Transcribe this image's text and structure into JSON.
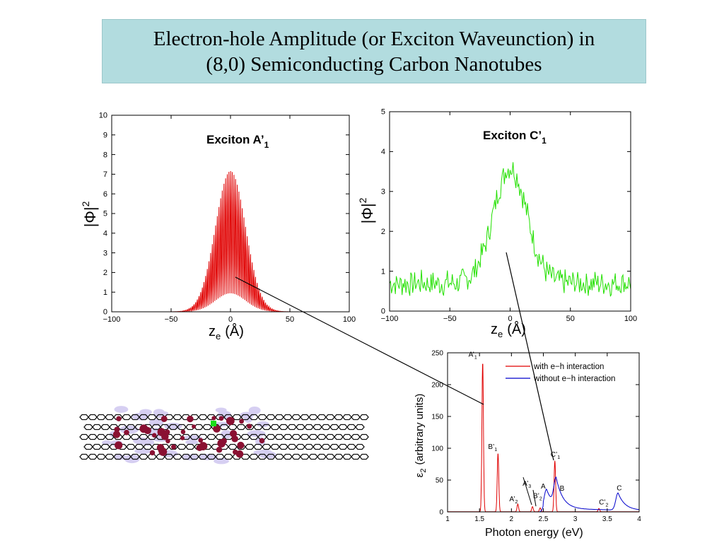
{
  "title": {
    "line1": "Electron-hole Amplitude (or Exciton Waveunction) in",
    "line2": "(8,0) Semiconducting Carbon Nanotubes"
  },
  "chart_data": [
    {
      "id": "exciton-a1",
      "type": "line",
      "title": "Exciton A’",
      "title_sub": "1",
      "xlabel": "z",
      "xlabel_sub": "e",
      "xlabel_unit": "(Å)",
      "ylabel": "|Φ|",
      "ylabel_sup": "2",
      "xlim": [
        -100,
        100
      ],
      "ylim": [
        0,
        10
      ],
      "xticks": [
        -100,
        -50,
        0,
        50,
        100
      ],
      "xtick_labels": [
        "−100",
        "−50",
        "0",
        "50",
        "100"
      ],
      "yticks": [
        0,
        1,
        2,
        3,
        4,
        5,
        6,
        7,
        8,
        9,
        10
      ],
      "ytick_labels": [
        "0",
        "1",
        "2",
        "3",
        "4",
        "5",
        "6",
        "7",
        "8",
        "9",
        "10"
      ],
      "color": "#e00000",
      "series": [
        {
          "envelope": {
            "shape": "gaussian",
            "center": 0,
            "peak": 7.5,
            "width": 12,
            "baseline": 0
          },
          "oscillation_period": 1.4
        }
      ]
    },
    {
      "id": "exciton-c1",
      "type": "line",
      "title": "Exciton C’",
      "title_sub": "1",
      "xlabel": "z",
      "xlabel_sub": "e",
      "xlabel_unit": "(Å)",
      "ylabel": "|Φ|",
      "ylabel_sup": "2",
      "xlim": [
        -100,
        100
      ],
      "ylim": [
        0,
        5
      ],
      "xticks": [
        -100,
        -50,
        0,
        50,
        100
      ],
      "xtick_labels": [
        "−100",
        "−50",
        "0",
        "50",
        "100"
      ],
      "yticks": [
        0,
        1,
        2,
        3,
        4,
        5
      ],
      "ytick_labels": [
        "0",
        "1",
        "2",
        "3",
        "4",
        "5"
      ],
      "color": "#22e000",
      "series": [
        {
          "envelope": {
            "shape": "gaussian",
            "center": 0,
            "peak": 3.6,
            "width": 14,
            "baseline": 0.7
          },
          "noise": 0.35
        }
      ]
    },
    {
      "id": "absorption-spectrum",
      "type": "line",
      "xlabel": "Photon energy (eV)",
      "ylabel": "ε",
      "ylabel_sub": "2",
      "ylabel_rest": "(arbitrary units)",
      "xlim": [
        1,
        4
      ],
      "ylim": [
        0,
        250
      ],
      "xticks": [
        1,
        1.5,
        2,
        2.5,
        3,
        3.5,
        4
      ],
      "xtick_labels": [
        "1",
        "1.5",
        "2",
        "2.5",
        "3",
        "3.5",
        "4"
      ],
      "yticks": [
        0,
        50,
        100,
        150,
        200,
        250
      ],
      "ytick_labels": [
        "0",
        "50",
        "100",
        "150",
        "200",
        "250"
      ],
      "legend": {
        "position": "top-right"
      },
      "series": [
        {
          "name": "with e−h interaction",
          "color": "#e00000",
          "peaks": [
            {
              "x": 1.55,
              "y": 235,
              "label": "A’",
              "sub": "1"
            },
            {
              "x": 1.79,
              "y": 92,
              "label": "B’",
              "sub": "1"
            },
            {
              "x": 2.1,
              "y": 12,
              "label": "A’",
              "sub": "2"
            },
            {
              "x": 2.33,
              "y": 8,
              "label": "A’",
              "sub": "3"
            },
            {
              "x": 2.45,
              "y": 6,
              "label": "B’",
              "sub": "2"
            },
            {
              "x": 2.68,
              "y": 80,
              "label": "C’",
              "sub": "1"
            },
            {
              "x": 3.37,
              "y": 5,
              "label": "C’",
              "sub": "2"
            }
          ]
        },
        {
          "name": "without e−h interaction",
          "color": "#0000cc",
          "peaks": [
            {
              "x": 2.55,
              "y": 30,
              "label": "A",
              "sub": ""
            },
            {
              "x": 2.7,
              "y": 42,
              "label": "B",
              "sub": ""
            },
            {
              "x": 3.67,
              "y": 27,
              "label": "C",
              "sub": ""
            }
          ]
        }
      ]
    }
  ]
}
